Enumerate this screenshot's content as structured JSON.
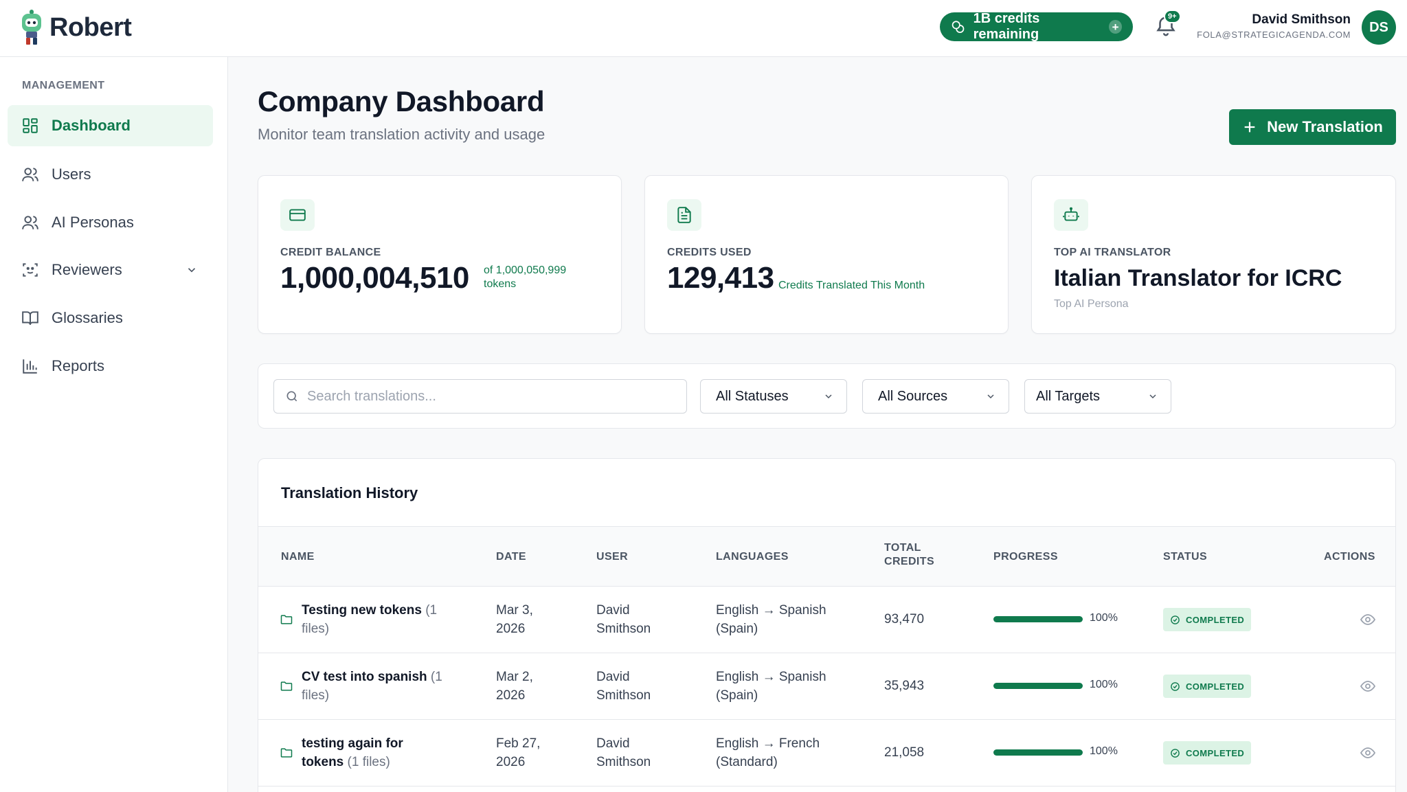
{
  "app": {
    "name": "Robert",
    "brand_color": "#0f7a4d"
  },
  "header": {
    "credits_label": "1B credits remaining",
    "notifications_badge": "9+",
    "user_name": "David Smithson",
    "user_email": "FOLA@STRATEGICAGENDA.COM",
    "avatar_initials": "DS"
  },
  "sidebar": {
    "section": "MANAGEMENT",
    "items": [
      {
        "label": "Dashboard",
        "icon": "dashboard-icon",
        "active": true
      },
      {
        "label": "Users",
        "icon": "users-icon"
      },
      {
        "label": "AI Personas",
        "icon": "personas-icon"
      },
      {
        "label": "Reviewers",
        "icon": "reviewers-icon",
        "expandable": true
      },
      {
        "label": "Glossaries",
        "icon": "book-icon"
      },
      {
        "label": "Reports",
        "icon": "bar-chart-icon"
      }
    ]
  },
  "page": {
    "title": "Company Dashboard",
    "subtitle": "Monitor team translation activity and usage",
    "new_button": "New Translation"
  },
  "cards": {
    "balance": {
      "label": "CREDIT BALANCE",
      "value": "1,000,004,510",
      "note_line1": "of 1,000,050,999",
      "note_line2": "tokens"
    },
    "used": {
      "label": "CREDITS USED",
      "value": "129,413",
      "note": "Credits Translated This Month"
    },
    "top": {
      "label": "TOP AI TRANSLATOR",
      "value": "Italian Translator for ICRC",
      "sub": "Top AI Persona"
    }
  },
  "filters": {
    "search_placeholder": "Search translations...",
    "status": "All Statuses",
    "source": "All Sources",
    "target": "All Targets"
  },
  "table": {
    "title": "Translation History",
    "headers": {
      "name": "NAME",
      "date": "DATE",
      "user": "USER",
      "languages": "LANGUAGES",
      "total_credits_1": "TOTAL",
      "total_credits_2": "CREDITS",
      "progress": "PROGRESS",
      "status": "STATUS",
      "actions": "ACTIONS"
    },
    "rows": [
      {
        "name": "Testing new tokens",
        "files_a": "(1",
        "files_b": "files)",
        "date_1": "Mar 3,",
        "date_2": "2026",
        "user_1": "David",
        "user_2": "Smithson",
        "lang_1": "English → Spanish",
        "lang_2": "(Spain)",
        "credits": "93,470",
        "progress": 100,
        "progress_label": "100%",
        "status": "COMPLETED"
      },
      {
        "name": "CV test into spanish",
        "files_a": "(1",
        "files_b": "files)",
        "date_1": "Mar 2,",
        "date_2": "2026",
        "user_1": "David",
        "user_2": "Smithson",
        "lang_1": "English → Spanish",
        "lang_2": "(Spain)",
        "credits": "35,943",
        "progress": 100,
        "progress_label": "100%",
        "status": "COMPLETED"
      },
      {
        "name_1": "testing again for",
        "name_2": "tokens",
        "files": "(1 files)",
        "date_1": "Feb 27,",
        "date_2": "2026",
        "user_1": "David",
        "user_2": "Smithson",
        "lang_1": "English → French",
        "lang_2": "(Standard)",
        "credits": "21,058",
        "progress": 100,
        "progress_label": "100%",
        "status": "COMPLETED"
      }
    ]
  }
}
